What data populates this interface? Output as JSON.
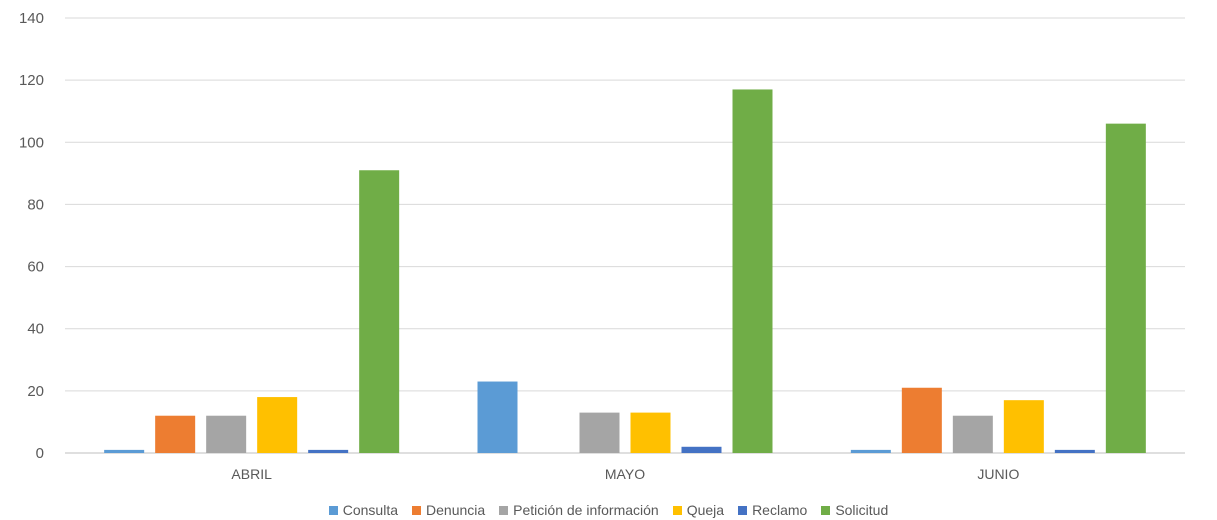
{
  "chart_data": {
    "type": "bar",
    "title": "",
    "xlabel": "",
    "ylabel": "",
    "categories": [
      "ABRIL",
      "MAYO",
      "JUNIO"
    ],
    "ylim": [
      0,
      140
    ],
    "yticks": [
      0,
      20,
      40,
      60,
      80,
      100,
      120,
      140
    ],
    "grid": true,
    "legend_position": "bottom",
    "series": [
      {
        "name": "Consulta",
        "color": "#5B9BD5",
        "values": [
          1,
          23,
          1
        ]
      },
      {
        "name": "Denuncia",
        "color": "#ED7D31",
        "values": [
          12,
          0,
          21
        ]
      },
      {
        "name": "Petición de información",
        "color": "#A5A5A5",
        "values": [
          12,
          13,
          12
        ]
      },
      {
        "name": "Queja",
        "color": "#FFC000",
        "values": [
          18,
          13,
          17
        ]
      },
      {
        "name": "Reclamo",
        "color": "#4472C4",
        "values": [
          1,
          2,
          1
        ]
      },
      {
        "name": "Solicitud",
        "color": "#70AD47",
        "values": [
          91,
          117,
          106
        ]
      }
    ]
  }
}
